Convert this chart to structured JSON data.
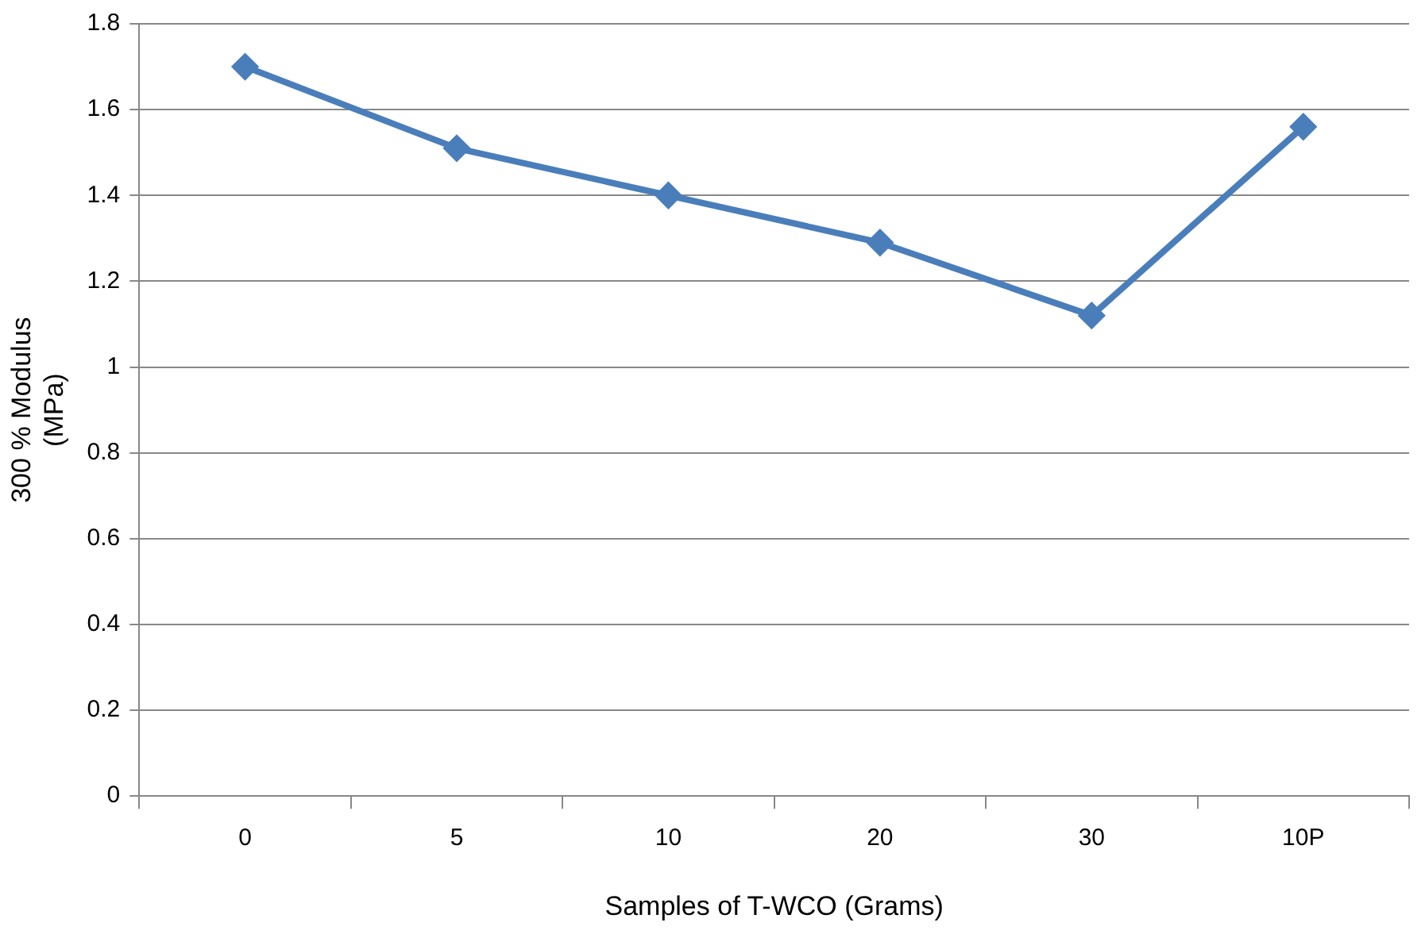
{
  "chart_data": {
    "type": "line",
    "xlabel": "Samples of T-WCO (Grams)",
    "ylabel": "300 % Modulus (MPa)",
    "categories": [
      "0",
      "5",
      "10",
      "20",
      "30",
      "10P"
    ],
    "series": [
      {
        "color": "#4a7ebb",
        "values": [
          1.7,
          1.51,
          1.4,
          1.29,
          1.12,
          1.56
        ]
      }
    ],
    "ylim": [
      0,
      1.8
    ],
    "yticks": [
      0,
      0.2,
      0.4,
      0.6,
      0.8,
      1,
      1.2,
      1.4,
      1.6,
      1.8
    ],
    "grid": "y",
    "legend": false,
    "marker": "diamond",
    "line_style": "solid"
  }
}
